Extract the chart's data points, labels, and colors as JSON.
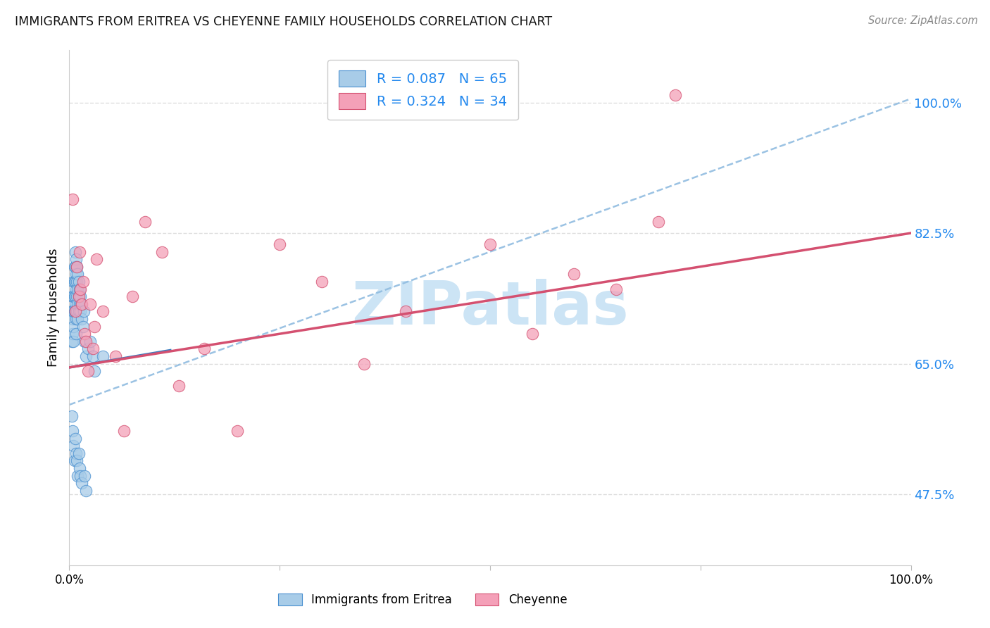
{
  "title": "IMMIGRANTS FROM ERITREA VS CHEYENNE FAMILY HOUSEHOLDS CORRELATION CHART",
  "source": "Source: ZipAtlas.com",
  "ylabel": "Family Households",
  "legend_label1": "Immigrants from Eritrea",
  "legend_label2": "Cheyenne",
  "r1": 0.087,
  "n1": 65,
  "r2": 0.324,
  "n2": 34,
  "color_blue": "#a8cce8",
  "color_pink": "#f4a0b8",
  "edge_blue": "#4a90d0",
  "edge_pink": "#d45070",
  "line_blue_solid": "#3a7cbf",
  "line_pink_solid": "#d45070",
  "line_dashed": "#90bce0",
  "ytick_values": [
    0.475,
    0.65,
    0.825,
    1.0
  ],
  "ytick_labels": [
    "47.5%",
    "65.0%",
    "82.5%",
    "100.0%"
  ],
  "ymin": 0.38,
  "ymax": 1.07,
  "xmin": 0.0,
  "xmax": 1.0,
  "grid_color": "#dddddd",
  "tick_color": "#2288EE",
  "background_color": "#ffffff",
  "watermark_text": "ZIPatlas",
  "watermark_color": "#cce4f5",
  "blue_x": [
    0.003,
    0.003,
    0.004,
    0.004,
    0.004,
    0.005,
    0.005,
    0.005,
    0.005,
    0.005,
    0.006,
    0.006,
    0.006,
    0.006,
    0.007,
    0.007,
    0.007,
    0.007,
    0.007,
    0.008,
    0.008,
    0.008,
    0.008,
    0.008,
    0.008,
    0.009,
    0.009,
    0.009,
    0.009,
    0.01,
    0.01,
    0.01,
    0.01,
    0.011,
    0.011,
    0.011,
    0.012,
    0.012,
    0.013,
    0.013,
    0.014,
    0.015,
    0.016,
    0.017,
    0.018,
    0.02,
    0.022,
    0.025,
    0.028,
    0.03,
    0.003,
    0.004,
    0.005,
    0.006,
    0.007,
    0.008,
    0.009,
    0.01,
    0.011,
    0.012,
    0.013,
    0.015,
    0.018,
    0.02,
    0.04
  ],
  "blue_y": [
    0.68,
    0.72,
    0.74,
    0.71,
    0.69,
    0.76,
    0.74,
    0.72,
    0.7,
    0.68,
    0.78,
    0.76,
    0.74,
    0.72,
    0.8,
    0.78,
    0.76,
    0.74,
    0.72,
    0.79,
    0.77,
    0.75,
    0.73,
    0.71,
    0.69,
    0.78,
    0.76,
    0.74,
    0.72,
    0.77,
    0.75,
    0.73,
    0.71,
    0.76,
    0.74,
    0.72,
    0.75,
    0.73,
    0.74,
    0.72,
    0.73,
    0.71,
    0.7,
    0.72,
    0.68,
    0.66,
    0.67,
    0.68,
    0.66,
    0.64,
    0.58,
    0.56,
    0.54,
    0.52,
    0.55,
    0.53,
    0.52,
    0.5,
    0.53,
    0.51,
    0.5,
    0.49,
    0.5,
    0.48,
    0.66
  ],
  "pink_x": [
    0.004,
    0.007,
    0.009,
    0.011,
    0.012,
    0.013,
    0.015,
    0.016,
    0.018,
    0.02,
    0.022,
    0.025,
    0.028,
    0.03,
    0.032,
    0.04,
    0.055,
    0.065,
    0.075,
    0.09,
    0.11,
    0.13,
    0.16,
    0.2,
    0.25,
    0.3,
    0.35,
    0.4,
    0.5,
    0.55,
    0.6,
    0.65,
    0.7,
    0.72
  ],
  "pink_y": [
    0.87,
    0.72,
    0.78,
    0.74,
    0.8,
    0.75,
    0.73,
    0.76,
    0.69,
    0.68,
    0.64,
    0.73,
    0.67,
    0.7,
    0.79,
    0.72,
    0.66,
    0.56,
    0.74,
    0.84,
    0.8,
    0.62,
    0.67,
    0.56,
    0.81,
    0.76,
    0.65,
    0.72,
    0.81,
    0.69,
    0.77,
    0.75,
    0.84,
    1.01
  ],
  "blue_line_x0": 0.0,
  "blue_line_y0": 0.645,
  "blue_line_x1": 0.12,
  "blue_line_y1": 0.668,
  "pink_line_x0": 0.0,
  "pink_line_y0": 0.645,
  "pink_line_x1": 1.0,
  "pink_line_y1": 0.825,
  "dash_line_x0": 0.0,
  "dash_line_y0": 0.595,
  "dash_line_x1": 1.0,
  "dash_line_y1": 1.005
}
